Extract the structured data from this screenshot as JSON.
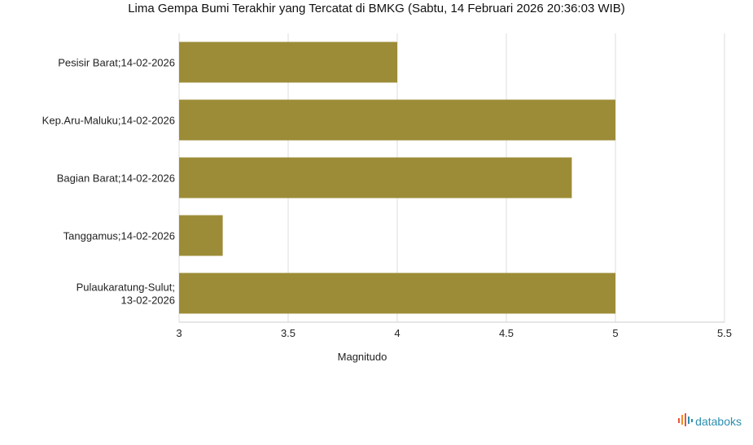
{
  "chart_data": {
    "type": "bar",
    "orientation": "horizontal",
    "title": "Lima Gempa Bumi Terakhir yang Tercatat di BMKG (Sabtu, 14 Februari 2026 20:36:03 WIB)",
    "categories": [
      [
        "Pesisir Barat;14-02-2026"
      ],
      [
        "Kep.Aru-Maluku;14-02-2026"
      ],
      [
        "Bagian Barat;14-02-2026"
      ],
      [
        "Tanggamus;14-02-2026"
      ],
      [
        "Pulaukaratung-Sulut;",
        "13-02-2026"
      ]
    ],
    "values": [
      4.0,
      5.0,
      4.8,
      3.2,
      5.0
    ],
    "xlabel": "Magnitudo",
    "ylabel": "",
    "xlim": [
      3,
      5.5
    ],
    "xticks": [
      "3",
      "3.5",
      "4",
      "4.5",
      "5",
      "5.5"
    ],
    "grid": true,
    "bar_color": "#9c8c37"
  },
  "brand": {
    "name": "databoks",
    "icon": "databoks-logo-icon"
  }
}
